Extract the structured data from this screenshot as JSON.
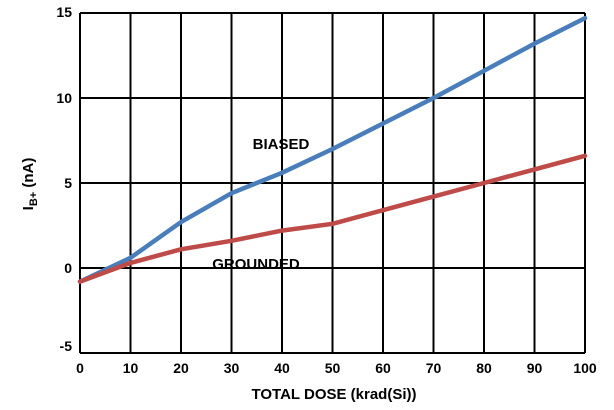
{
  "chart_data": {
    "type": "line",
    "xlabel": "TOTAL DOSE (krad(Si))",
    "ylabel_main": "I",
    "ylabel_sub": "B+",
    "ylabel_unit": " (nA)",
    "xlim": [
      0,
      100
    ],
    "ylim": [
      -5,
      15
    ],
    "x_ticks": [
      "0",
      "10",
      "20",
      "30",
      "40",
      "50",
      "60",
      "70",
      "80",
      "90",
      "100"
    ],
    "y_ticks": [
      "15",
      "10",
      "5",
      "0",
      "-5"
    ],
    "grid": true,
    "annotations": [
      {
        "text": "BIASED"
      },
      {
        "text": "GROUNDED"
      }
    ],
    "series": [
      {
        "name": "BIASED",
        "color": "#4a7ebb",
        "x": [
          0,
          10,
          20,
          30,
          40,
          50,
          60,
          70,
          80,
          90,
          100
        ],
        "y": [
          -0.8,
          0.6,
          2.7,
          4.4,
          5.6,
          7.0,
          8.5,
          10.0,
          11.6,
          13.2,
          14.7
        ]
      },
      {
        "name": "GROUNDED",
        "color": "#be4b48",
        "x": [
          0,
          10,
          20,
          30,
          40,
          50,
          60,
          70,
          80,
          90,
          100
        ],
        "y": [
          -0.8,
          0.3,
          1.1,
          1.6,
          2.2,
          2.6,
          3.4,
          4.2,
          5.0,
          5.8,
          6.6
        ]
      }
    ]
  }
}
